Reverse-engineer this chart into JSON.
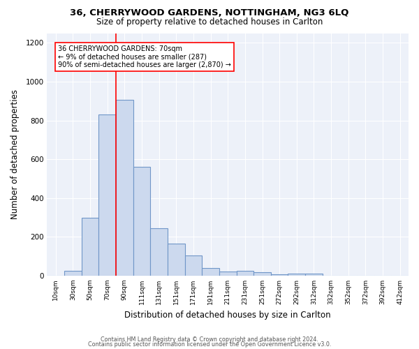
{
  "title1": "36, CHERRYWOOD GARDENS, NOTTINGHAM, NG3 6LQ",
  "title2": "Size of property relative to detached houses in Carlton",
  "xlabel": "Distribution of detached houses by size in Carlton",
  "ylabel": "Number of detached properties",
  "footnote1": "Contains HM Land Registry data © Crown copyright and database right 2024.",
  "footnote2": "Contains public sector information licensed under the Open Government Licence v3.0.",
  "annotation_line1": "36 CHERRYWOOD GARDENS: 70sqm",
  "annotation_line2": "← 9% of detached houses are smaller (287)",
  "annotation_line3": "90% of semi-detached houses are larger (2,870) →",
  "bar_labels": [
    "10sqm",
    "30sqm",
    "50sqm",
    "70sqm",
    "90sqm",
    "111sqm",
    "131sqm",
    "151sqm",
    "171sqm",
    "191sqm",
    "211sqm",
    "231sqm",
    "251sqm",
    "272sqm",
    "292sqm",
    "312sqm",
    "332sqm",
    "352sqm",
    "372sqm",
    "392sqm",
    "412sqm"
  ],
  "bar_values": [
    0,
    25,
    300,
    830,
    905,
    560,
    245,
    165,
    105,
    38,
    20,
    25,
    18,
    8,
    10,
    10,
    0,
    0,
    0,
    0,
    0
  ],
  "bar_color": "#ccd9ee",
  "bar_edge_color": "#7096c8",
  "ylim": [
    0,
    1250
  ],
  "yticks": [
    0,
    200,
    400,
    600,
    800,
    1000,
    1200
  ],
  "bg_color": "#edf1f9",
  "red_line_index": 3.5
}
